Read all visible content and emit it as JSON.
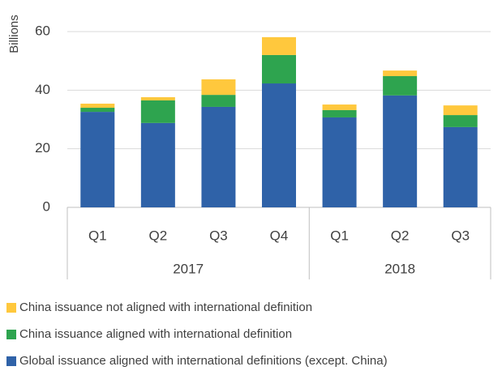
{
  "chart_data": {
    "type": "stacked_bar",
    "y_axis_label": "Billions",
    "categories": [
      "Q1",
      "Q2",
      "Q3",
      "Q4",
      "Q1",
      "Q2",
      "Q3"
    ],
    "groups": [
      {
        "name": "2017",
        "size": 4
      },
      {
        "name": "2018",
        "size": 3
      }
    ],
    "series": [
      {
        "name": "China issuance not aligned with international definition",
        "color": "#ffc83d",
        "values": [
          1.4,
          1.1,
          5.3,
          6.1,
          1.9,
          1.9,
          3.3
        ]
      },
      {
        "name": "China issuance aligned with international definition",
        "color": "#2ea44f",
        "values": [
          1.4,
          7.7,
          4.1,
          9.7,
          2.5,
          6.6,
          4.1
        ]
      },
      {
        "name": "Global issuance aligned with international definitions (except. China)",
        "color": "#2f62a8",
        "values": [
          32.6,
          28.8,
          34.3,
          42.3,
          30.7,
          38.2,
          27.4
        ]
      }
    ],
    "ylim": [
      0,
      60
    ],
    "yticks": [
      0,
      20,
      40,
      60
    ],
    "grid": true
  }
}
